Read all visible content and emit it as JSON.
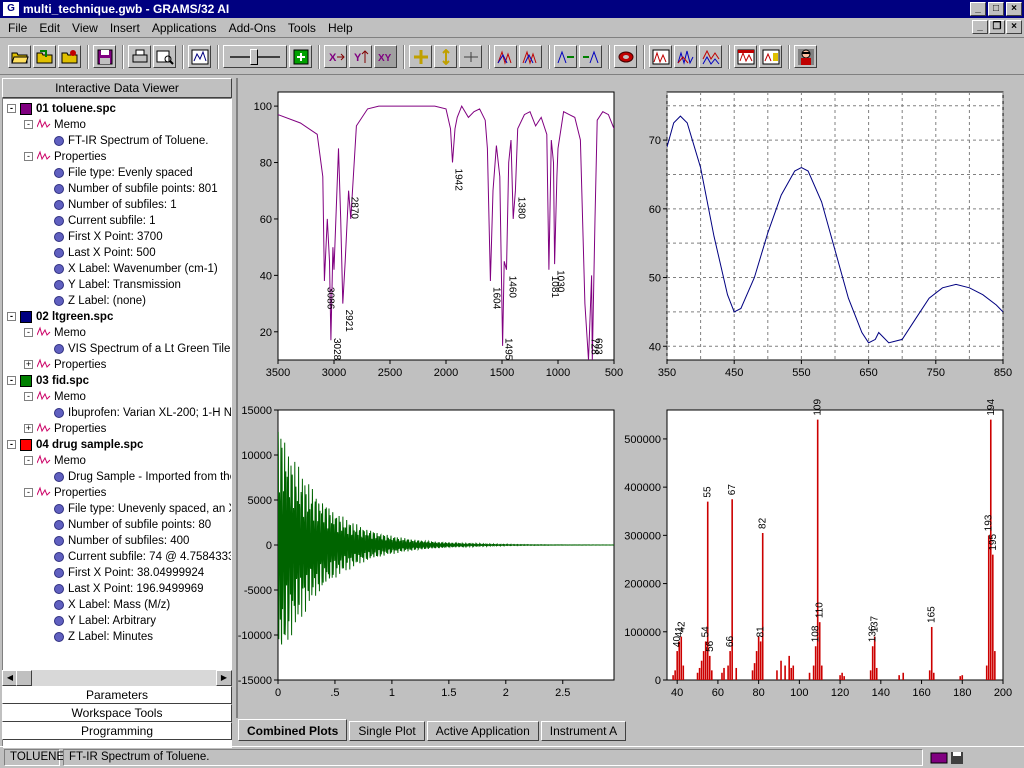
{
  "window": {
    "title": "multi_technique.gwb - GRAMS/32 AI",
    "app_icon": "grams-icon"
  },
  "menu": [
    "File",
    "Edit",
    "View",
    "Insert",
    "Applications",
    "Add-Ons",
    "Tools",
    "Help"
  ],
  "toolbar": {
    "buttons": [
      "open-folder-icon",
      "open-workspace-icon",
      "open-multi-icon",
      "save-icon",
      "print-icon",
      "zoom-icon",
      "plot-icon",
      "slider",
      "x-expand-icon",
      "y-expand-icon",
      "xy-expand-icon",
      "cross-cursor-icon",
      "vertical-cursor-icon",
      "horizontal-cursor-icon",
      "peak-pick-icon",
      "peak-overlay-icon",
      "baseline-icon",
      "derivative-icon",
      "undo-icon",
      "spectrum-display-icon",
      "overlay-display-icon",
      "stack-display-icon",
      "report-icon",
      "layout-icon",
      "user-icon"
    ]
  },
  "left_panel": {
    "header": "Interactive Data Viewer",
    "tree": [
      {
        "level": 0,
        "text": "01 toluene.spc",
        "color": "#800080",
        "bold": true,
        "expander": "-"
      },
      {
        "level": 1,
        "text": "Memo",
        "icon": "peak",
        "expander": "-"
      },
      {
        "level": 2,
        "text": "FT-IR Spectrum of Toluene.",
        "icon": "dot"
      },
      {
        "level": 1,
        "text": "Properties",
        "icon": "peak",
        "expander": "-"
      },
      {
        "level": 2,
        "text": "File type: Evenly spaced",
        "icon": "dot"
      },
      {
        "level": 2,
        "text": "Number of subfile points: 801",
        "icon": "dot"
      },
      {
        "level": 2,
        "text": "Number of subfiles: 1",
        "icon": "dot"
      },
      {
        "level": 2,
        "text": "Current subfile: 1",
        "icon": "dot"
      },
      {
        "level": 2,
        "text": "First X Point: 3700",
        "icon": "dot"
      },
      {
        "level": 2,
        "text": "Last X Point: 500",
        "icon": "dot"
      },
      {
        "level": 2,
        "text": "X Label: Wavenumber (cm-1)",
        "icon": "dot"
      },
      {
        "level": 2,
        "text": "Y Label: Transmission",
        "icon": "dot"
      },
      {
        "level": 2,
        "text": "Z Label: (none)",
        "icon": "dot"
      },
      {
        "level": 0,
        "text": "02 ltgreen.spc",
        "color": "#000080",
        "bold": true,
        "expander": "-"
      },
      {
        "level": 1,
        "text": "Memo",
        "icon": "peak",
        "expander": "-"
      },
      {
        "level": 2,
        "text": "VIS Spectrum of a Lt Green Tile.",
        "icon": "dot"
      },
      {
        "level": 1,
        "text": "Properties",
        "icon": "peak",
        "expander": "+"
      },
      {
        "level": 0,
        "text": "03 fid.spc",
        "color": "#008000",
        "bold": true,
        "expander": "-"
      },
      {
        "level": 1,
        "text": "Memo",
        "icon": "peak",
        "expander": "-"
      },
      {
        "level": 2,
        "text": "Ibuprofen: Varian XL-200; 1-H N",
        "icon": "dot"
      },
      {
        "level": 1,
        "text": "Properties",
        "icon": "peak",
        "expander": "+"
      },
      {
        "level": 0,
        "text": "04 drug sample.spc",
        "color": "#ff0000",
        "bold": true,
        "expander": "-"
      },
      {
        "level": 1,
        "text": "Memo",
        "icon": "peak",
        "expander": "-"
      },
      {
        "level": 2,
        "text": "Drug Sample - Imported from the",
        "icon": "dot"
      },
      {
        "level": 1,
        "text": "Properties",
        "icon": "peak",
        "expander": "-"
      },
      {
        "level": 2,
        "text": "File type: Unevenly spaced, an X",
        "icon": "dot"
      },
      {
        "level": 2,
        "text": "Number of subfile points: 80",
        "icon": "dot"
      },
      {
        "level": 2,
        "text": "Number of subfiles: 400",
        "icon": "dot"
      },
      {
        "level": 2,
        "text": "Current subfile: 74 @ 4.7584333",
        "icon": "dot"
      },
      {
        "level": 2,
        "text": "First X Point: 38.04999924",
        "icon": "dot"
      },
      {
        "level": 2,
        "text": "Last X Point: 196.9499969",
        "icon": "dot"
      },
      {
        "level": 2,
        "text": "X Label: Mass (M/z)",
        "icon": "dot"
      },
      {
        "level": 2,
        "text": "Y Label: Arbitrary",
        "icon": "dot"
      },
      {
        "level": 2,
        "text": "Z Label: Minutes",
        "icon": "dot"
      }
    ],
    "buttons": [
      "Parameters",
      "Workspace Tools",
      "Programming"
    ]
  },
  "tabs": [
    {
      "label": "Combined Plots",
      "active": true
    },
    {
      "label": "Single Plot",
      "active": false
    },
    {
      "label": "Active Application",
      "active": false
    },
    {
      "label": "Instrument A",
      "active": false
    }
  ],
  "status": {
    "name": "TOLUENE",
    "description": "FT-IR Spectrum of Toluene."
  },
  "chart_data": [
    {
      "type": "line",
      "name": "ir",
      "color": "#800080",
      "xlim": [
        3500,
        500
      ],
      "ylim": [
        10,
        105
      ],
      "xticks": [
        3500,
        3000,
        2500,
        2000,
        1500,
        1000,
        500
      ],
      "yticks": [
        20,
        40,
        60,
        80,
        100
      ],
      "grid": false,
      "x": [
        3700,
        3500,
        3300,
        3150,
        3100,
        3086,
        3060,
        3040,
        3028,
        3010,
        3000,
        2960,
        2940,
        2921,
        2900,
        2870,
        2850,
        2800,
        2700,
        2600,
        2500,
        2400,
        2300,
        2200,
        2100,
        2000,
        1960,
        1942,
        1920,
        1900,
        1860,
        1800,
        1750,
        1700,
        1650,
        1630,
        1604,
        1580,
        1550,
        1520,
        1495,
        1480,
        1460,
        1440,
        1420,
        1400,
        1380,
        1360,
        1300,
        1250,
        1200,
        1150,
        1100,
        1081,
        1060,
        1040,
        1030,
        1010,
        1000,
        950,
        900,
        850,
        800,
        760,
        728,
        700,
        694,
        670,
        650,
        600,
        550,
        500
      ],
      "y": [
        95,
        97,
        94,
        90,
        75,
        38,
        60,
        45,
        17,
        50,
        42,
        85,
        60,
        30,
        45,
        70,
        60,
        93,
        99,
        100,
        100,
        100,
        100,
        100,
        100,
        99,
        92,
        80,
        92,
        96,
        100,
        96,
        98,
        99,
        95,
        85,
        38,
        70,
        86,
        75,
        15,
        45,
        42,
        80,
        88,
        60,
        70,
        92,
        97,
        98,
        93,
        96,
        90,
        42,
        88,
        80,
        44,
        75,
        85,
        98,
        97,
        96,
        88,
        30,
        10,
        40,
        10,
        60,
        95,
        98,
        97,
        92
      ],
      "annotations": [
        {
          "x": 3086,
          "label": "3086"
        },
        {
          "x": 3028,
          "label": "3028"
        },
        {
          "x": 2921,
          "label": "2921"
        },
        {
          "x": 2870,
          "label": "2870"
        },
        {
          "x": 1942,
          "label": "1942"
        },
        {
          "x": 1604,
          "label": "1604"
        },
        {
          "x": 1495,
          "label": "1495"
        },
        {
          "x": 1460,
          "label": "1460"
        },
        {
          "x": 1380,
          "label": "1380"
        },
        {
          "x": 1081,
          "label": "1081"
        },
        {
          "x": 1030,
          "label": "1030"
        },
        {
          "x": 728,
          "label": "728"
        },
        {
          "x": 694,
          "label": "693"
        }
      ]
    },
    {
      "type": "line",
      "name": "vis",
      "color": "#000080",
      "xlim": [
        350,
        850
      ],
      "ylim": [
        38,
        77
      ],
      "xticks": [
        350,
        450,
        550,
        650,
        750,
        850
      ],
      "yticks": [
        40,
        50,
        60,
        70
      ],
      "grid": true,
      "x": [
        350,
        360,
        370,
        380,
        400,
        420,
        440,
        450,
        460,
        480,
        500,
        520,
        540,
        550,
        560,
        580,
        600,
        620,
        640,
        650,
        660,
        665,
        670,
        680,
        700,
        720,
        740,
        760,
        780,
        800,
        820,
        840,
        850
      ],
      "y": [
        69,
        72.5,
        73.5,
        72.5,
        66,
        56,
        47.5,
        45,
        45.5,
        50,
        56.5,
        62,
        65.5,
        66,
        65.5,
        61,
        54,
        47,
        42,
        40.5,
        41,
        42,
        41.5,
        40.5,
        41,
        44,
        47,
        48.5,
        49,
        48.5,
        47.5,
        46,
        45
      ]
    },
    {
      "type": "line",
      "name": "fid",
      "color": "#006400",
      "xlim": [
        0,
        2.95
      ],
      "ylim": [
        -15000,
        15000
      ],
      "xticks": [
        0,
        0.5,
        1,
        1.5,
        2,
        2.5
      ],
      "xtick_labels": [
        "0",
        ".5",
        "1",
        "1.5",
        "2",
        "2.5"
      ],
      "yticks": [
        -15000,
        -10000,
        -5000,
        0,
        5000,
        10000,
        15000
      ],
      "grid": false,
      "decay": {
        "amplitude": 14000,
        "rate": 2.6,
        "cycles_per_unit": 90
      }
    },
    {
      "type": "bar",
      "name": "ms",
      "color": "#cc0000",
      "xlim": [
        35,
        200
      ],
      "ylim": [
        0,
        560000
      ],
      "xticks": [
        40,
        60,
        80,
        100,
        120,
        140,
        160,
        180,
        200
      ],
      "yticks": [
        0,
        100000,
        200000,
        300000,
        400000,
        500000
      ],
      "grid": false,
      "x": [
        38,
        39,
        40,
        41,
        42,
        43,
        50,
        51,
        52,
        53,
        54,
        55,
        56,
        57,
        62,
        63,
        65,
        66,
        67,
        69,
        77,
        78,
        79,
        80,
        81,
        82,
        89,
        91,
        93,
        95,
        96,
        97,
        105,
        107,
        108,
        109,
        110,
        111,
        120,
        121,
        122,
        135,
        136,
        137,
        138,
        149,
        151,
        164,
        165,
        166,
        179,
        180,
        192,
        193,
        194,
        195,
        196
      ],
      "values": [
        10000,
        20000,
        60000,
        80000,
        90000,
        30000,
        15000,
        25000,
        40000,
        60000,
        80000,
        370000,
        50000,
        20000,
        15000,
        25000,
        30000,
        60000,
        375000,
        25000,
        20000,
        35000,
        60000,
        90000,
        80000,
        305000,
        20000,
        40000,
        30000,
        50000,
        25000,
        30000,
        15000,
        30000,
        70000,
        540000,
        120000,
        30000,
        10000,
        15000,
        8000,
        20000,
        70000,
        90000,
        25000,
        10000,
        15000,
        20000,
        110000,
        15000,
        8000,
        10000,
        30000,
        300000,
        540000,
        260000,
        60000
      ],
      "annotations": [
        {
          "x": 40,
          "label": "40"
        },
        {
          "x": 41,
          "label": "41"
        },
        {
          "x": 42,
          "label": "42"
        },
        {
          "x": 54,
          "label": "54"
        },
        {
          "x": 55,
          "label": "55"
        },
        {
          "x": 56,
          "label": "56"
        },
        {
          "x": 66,
          "label": "66"
        },
        {
          "x": 67,
          "label": "67"
        },
        {
          "x": 81,
          "label": "81"
        },
        {
          "x": 82,
          "label": "82"
        },
        {
          "x": 108,
          "label": "108"
        },
        {
          "x": 109,
          "label": "109"
        },
        {
          "x": 110,
          "label": "110"
        },
        {
          "x": 136,
          "label": "136"
        },
        {
          "x": 137,
          "label": "137"
        },
        {
          "x": 165,
          "label": "165"
        },
        {
          "x": 193,
          "label": "193"
        },
        {
          "x": 194,
          "label": "194"
        },
        {
          "x": 195,
          "label": "195"
        }
      ]
    }
  ]
}
